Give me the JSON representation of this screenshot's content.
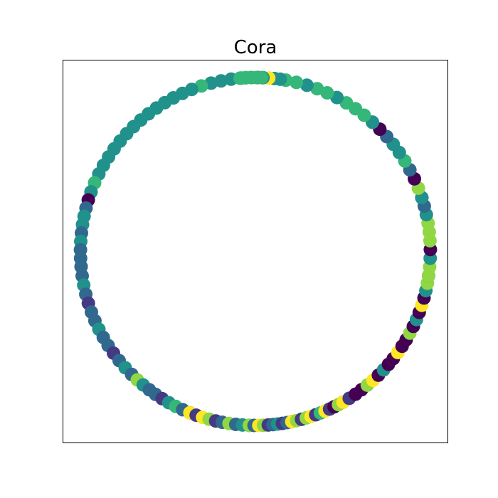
{
  "chart_data": {
    "type": "scatter",
    "title": "Cora",
    "xlabel": "",
    "ylabel": "",
    "xlim": [
      -1.1,
      1.1
    ],
    "ylim": [
      -1.1,
      1.1
    ],
    "grid": false,
    "axis_ticks": false,
    "legend": "none",
    "colormap": "viridis",
    "class_colors": [
      "#440154",
      "#443983",
      "#31688e",
      "#21918c",
      "#35b779",
      "#90d743",
      "#fde725"
    ],
    "layout": "circular",
    "node_count": 250,
    "segments": [
      {
        "from": 88,
        "to": 118,
        "classes": [
          3,
          3,
          3,
          3,
          3,
          3,
          4,
          3,
          3,
          3
        ]
      },
      {
        "from": 118,
        "to": 160,
        "classes": [
          3,
          3,
          3,
          3,
          3,
          3,
          3,
          3,
          3,
          3,
          3,
          3,
          4,
          3
        ]
      },
      {
        "from": 160,
        "to": 185,
        "classes": [
          3,
          0,
          2,
          3,
          3,
          2,
          3,
          2,
          2,
          2
        ]
      },
      {
        "from": 185,
        "to": 225,
        "classes": [
          2,
          2,
          3,
          2,
          1,
          2,
          2,
          3,
          2,
          2,
          1,
          2,
          3,
          2
        ]
      },
      {
        "from": 225,
        "to": 248,
        "classes": [
          2,
          5,
          3,
          2,
          2,
          1,
          3,
          4,
          2,
          1
        ]
      },
      {
        "from": 248,
        "to": 268,
        "classes": [
          6,
          1,
          6,
          5,
          1,
          2,
          5,
          2,
          3,
          1
        ]
      },
      {
        "from": 268,
        "to": 282,
        "classes": [
          5,
          2,
          6,
          5,
          1,
          2,
          3,
          1,
          2,
          0
        ]
      },
      {
        "from": 282,
        "to": 300,
        "classes": [
          6,
          5,
          1,
          5,
          6,
          1,
          4,
          6,
          1,
          0,
          5,
          1
        ]
      },
      {
        "from": 300,
        "to": 322,
        "classes": [
          6,
          1,
          0,
          0,
          5,
          6,
          0,
          3,
          0,
          5
        ]
      },
      {
        "from": 322,
        "to": 352,
        "classes": [
          0,
          6,
          0,
          0,
          5,
          0,
          3,
          0,
          6,
          0,
          3,
          5,
          2
        ]
      },
      {
        "from": 352,
        "to": 378,
        "classes": [
          5,
          5,
          3,
          0,
          5,
          5,
          5,
          3,
          2,
          0
        ]
      },
      {
        "from": 378,
        "to": 408,
        "classes": [
          3,
          5,
          0,
          2,
          4,
          3,
          3,
          2,
          0,
          3
        ]
      },
      {
        "from": 408,
        "to": 440,
        "classes": [
          3,
          4,
          4,
          4,
          3,
          4,
          4,
          3,
          4,
          4
        ]
      },
      {
        "from": 440,
        "to": 455,
        "classes": [
          4,
          3,
          3,
          6,
          3,
          0,
          4,
          4,
          4
        ]
      },
      {
        "from": 455,
        "to": 448,
        "classes": [
          4,
          4,
          4,
          4,
          4
        ]
      }
    ]
  }
}
